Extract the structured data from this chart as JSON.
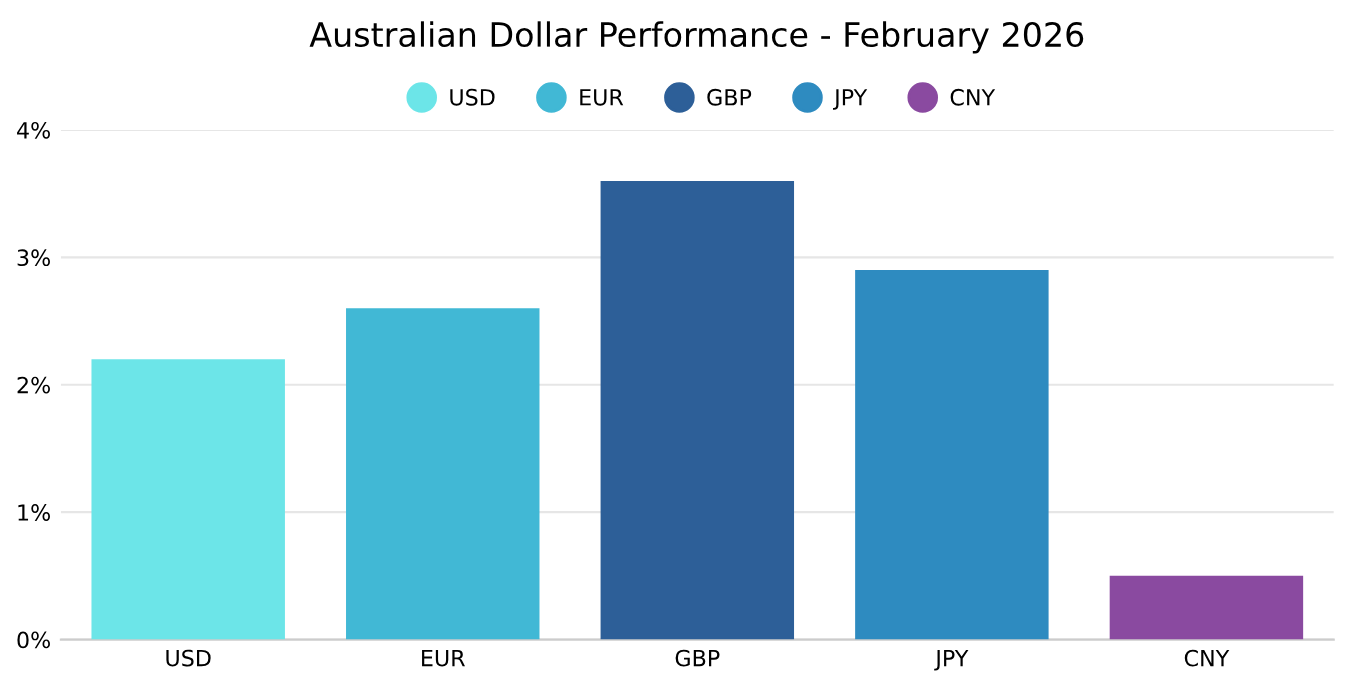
{
  "chart_data": {
    "type": "bar",
    "title": "Australian Dollar Performance - February 2026",
    "categories": [
      "USD",
      "EUR",
      "GBP",
      "JPY",
      "CNY"
    ],
    "series": [
      {
        "name": "USD",
        "color": "#6ce5e8",
        "values": [
          2.2,
          null,
          null,
          null,
          null
        ]
      },
      {
        "name": "EUR",
        "color": "#41b8d5",
        "values": [
          null,
          2.6,
          null,
          null,
          null
        ]
      },
      {
        "name": "GBP",
        "color": "#2d5f98",
        "values": [
          null,
          null,
          3.6,
          null,
          null
        ]
      },
      {
        "name": "JPY",
        "color": "#2e8bc0",
        "values": [
          null,
          null,
          null,
          2.9,
          null
        ]
      },
      {
        "name": "CNY",
        "color": "#8a4aa0",
        "values": [
          null,
          null,
          null,
          null,
          0.5
        ]
      }
    ],
    "ylim": [
      0,
      4
    ],
    "yticks": [
      {
        "value": 0,
        "label": "0%"
      },
      {
        "value": 1,
        "label": "1%"
      },
      {
        "value": 2,
        "label": "2%"
      },
      {
        "value": 3,
        "label": "3%"
      },
      {
        "value": 4,
        "label": "4%"
      }
    ],
    "grid": "y",
    "legend": "top"
  }
}
